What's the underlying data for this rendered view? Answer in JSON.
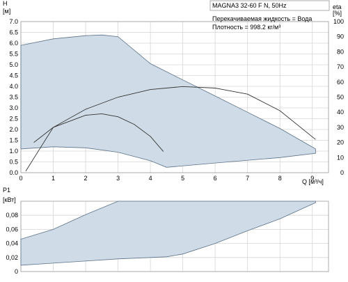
{
  "chart_data": [
    {
      "type": "line",
      "title": "MAGNA3 32-60 F N, 50Hz",
      "annotations": [
        "Перекачиваемая жидкость = Вода",
        "Плотность = 998.2 кг/м³"
      ],
      "xlabel": "Q [м³/ч]",
      "ylabel_left": {
        "name": "H",
        "unit": "[м]"
      },
      "ylabel_right": {
        "name": "eta",
        "unit": "[%]"
      },
      "xlim": [
        0,
        9.5
      ],
      "ylim_left": [
        0,
        7.0
      ],
      "ylim_right": [
        0,
        100
      ],
      "x_ticks": [
        "0",
        "1",
        "2",
        "3",
        "4",
        "5",
        "6",
        "7",
        "8",
        "9"
      ],
      "y_ticks_left": [
        "0.0",
        "0.5",
        "1.0",
        "1.5",
        "2.0",
        "2.5",
        "3.0",
        "3.5",
        "4.0",
        "4.5",
        "5.0",
        "5.5",
        "6.0",
        "6.5",
        "7.0"
      ],
      "y_ticks_right": [
        "0",
        "10",
        "20",
        "30",
        "40",
        "50",
        "60",
        "70",
        "80",
        "90",
        "100"
      ],
      "grid": true,
      "series": [
        {
          "kind": "operating-range-band",
          "upper": {
            "x": [
              0,
              1,
              2,
              2.5,
              3,
              4,
              5,
              6,
              7,
              8,
              9.1
            ],
            "y": [
              5.9,
              6.2,
              6.35,
              6.38,
              6.3,
              5.05,
              4.3,
              3.55,
              2.8,
              2.05,
              1.1
            ]
          },
          "lower": {
            "x": [
              0,
              0.5,
              1,
              2,
              3,
              4,
              4.5,
              6,
              8,
              9.1
            ],
            "y": [
              1.1,
              1.15,
              1.2,
              1.15,
              0.95,
              0.55,
              0.25,
              0.45,
              0.7,
              0.9
            ]
          }
        },
        {
          "kind": "efficiency",
          "x": [
            0.15,
            1,
            2,
            3,
            4,
            5,
            6,
            7,
            8,
            9.1
          ],
          "y": [
            1,
            30,
            42,
            50,
            55,
            57,
            56,
            52,
            41,
            22
          ]
        },
        {
          "kind": "efficiency",
          "x": [
            0.4,
            1,
            2,
            2.5,
            3,
            3.5,
            4,
            4.4
          ],
          "y": [
            20,
            30,
            38,
            39,
            37,
            32,
            24,
            14
          ]
        }
      ]
    },
    {
      "type": "line",
      "ylabel": {
        "name": "P1",
        "unit": "[кВт]"
      },
      "xlim": [
        0,
        9.5
      ],
      "ylim": [
        0,
        0.1
      ],
      "y_ticks": [
        "0",
        "0,02",
        "0,04",
        "0,06",
        "0,08"
      ],
      "grid": true,
      "series": [
        {
          "kind": "power-range-band",
          "upper": {
            "x": [
              0,
              1,
              2,
              3,
              4,
              5,
              6,
              7,
              8,
              9.1
            ],
            "y": [
              0.046,
              0.06,
              0.081,
              0.1,
              0.1,
              0.1,
              0.1,
              0.1,
              0.1,
              0.1
            ]
          },
          "lower": {
            "x": [
              0,
              1,
              2,
              3,
              4,
              4.5,
              5,
              6,
              7,
              8,
              9.1
            ],
            "y": [
              0.009,
              0.012,
              0.015,
              0.018,
              0.02,
              0.021,
              0.025,
              0.04,
              0.058,
              0.075,
              0.098
            ]
          }
        }
      ]
    }
  ]
}
